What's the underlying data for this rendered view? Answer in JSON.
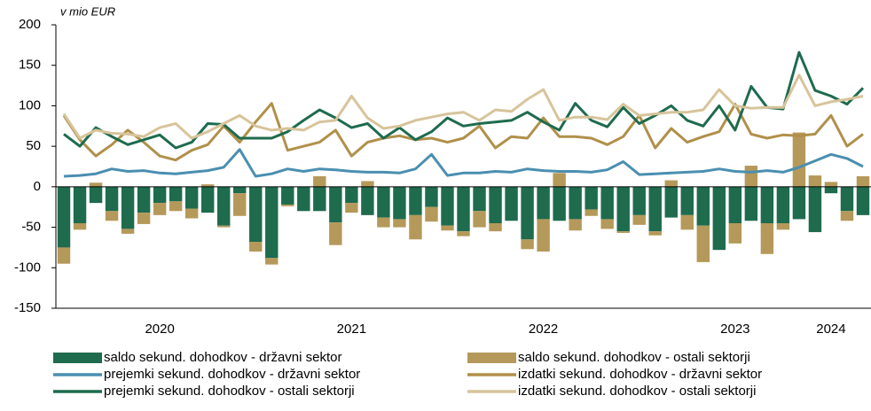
{
  "chart_data": {
    "type": "combo",
    "unit_label": "v mio EUR",
    "categories": [
      null,
      null,
      null,
      null,
      null,
      null,
      "2020",
      null,
      null,
      null,
      null,
      null,
      null,
      null,
      null,
      null,
      null,
      null,
      "2021",
      null,
      null,
      null,
      null,
      null,
      null,
      null,
      null,
      null,
      null,
      null,
      "2022",
      null,
      null,
      null,
      null,
      null,
      null,
      null,
      null,
      null,
      null,
      null,
      "2023",
      null,
      null,
      null,
      null,
      null,
      "2024",
      null,
      null
    ],
    "ylim": [
      -150,
      200
    ],
    "yticks": [
      -150,
      -100,
      -50,
      0,
      50,
      100,
      150,
      200
    ],
    "series": [
      {
        "name": "saldo sekund. dohodkov - državni sektor",
        "type": "bar",
        "color": "#1e6b4e",
        "values": [
          -75,
          -45,
          -20,
          -30,
          -52,
          -32,
          -20,
          -18,
          -27,
          -32,
          -48,
          -8,
          -68,
          -88,
          -22,
          -30,
          -30,
          -44,
          -20,
          -35,
          -38,
          -40,
          -35,
          -25,
          -48,
          -55,
          -30,
          -45,
          -42,
          -65,
          -40,
          -42,
          -40,
          -28,
          -40,
          -55,
          -35,
          -55,
          -38,
          -35,
          -48,
          -78,
          -45,
          -42,
          -45,
          -45,
          -40,
          -56,
          -8,
          -30,
          -35
        ]
      },
      {
        "name": "saldo sekund. dohodkov - ostali sektorji",
        "type": "bar",
        "color": "#b5995a",
        "values": [
          -20,
          -8,
          5,
          -12,
          -6,
          -14,
          -15,
          -12,
          -12,
          3,
          -2,
          -28,
          -12,
          -8,
          -2,
          0,
          13,
          -28,
          -12,
          7,
          -12,
          -10,
          -30,
          -18,
          -6,
          -6,
          -20,
          -10,
          0,
          -12,
          -40,
          17,
          -14,
          -8,
          -12,
          -2,
          -12,
          -5,
          8,
          -18,
          -45,
          0,
          -25,
          26,
          -38,
          -8,
          67,
          14,
          6,
          -12,
          13
        ]
      },
      {
        "name": "prejemki sekund. dohodkov - državni sektor",
        "type": "line",
        "color": "#4a8fb0",
        "values": [
          13,
          14,
          16,
          22,
          19,
          20,
          17,
          16,
          18,
          20,
          24,
          46,
          13,
          16,
          22,
          19,
          22,
          21,
          19,
          18,
          18,
          17,
          22,
          40,
          14,
          17,
          17,
          19,
          18,
          22,
          20,
          19,
          19,
          18,
          21,
          31,
          15,
          16,
          17,
          18,
          19,
          22,
          19,
          18,
          20,
          18,
          24,
          32,
          40,
          35,
          25
        ]
      },
      {
        "name": "izdatki sekund. dohodkov - državni sektor",
        "type": "line",
        "color": "#b0904a",
        "values": [
          88,
          58,
          38,
          52,
          70,
          55,
          38,
          33,
          45,
          52,
          75,
          55,
          80,
          103,
          45,
          50,
          55,
          70,
          38,
          55,
          60,
          63,
          58,
          60,
          55,
          60,
          75,
          48,
          62,
          60,
          85,
          62,
          62,
          60,
          52,
          62,
          88,
          48,
          72,
          55,
          62,
          68,
          102,
          65,
          60,
          64,
          63,
          65,
          88,
          50,
          65
        ]
      },
      {
        "name": "prejemki sekund. dohodkov - ostali sektorji",
        "type": "line",
        "color": "#1e6b4e",
        "values": [
          65,
          50,
          73,
          62,
          52,
          58,
          64,
          48,
          55,
          78,
          77,
          60,
          60,
          60,
          68,
          82,
          95,
          85,
          73,
          78,
          60,
          73,
          58,
          68,
          85,
          75,
          78,
          80,
          82,
          92,
          80,
          70,
          103,
          82,
          74,
          98,
          78,
          88,
          100,
          82,
          75,
          100,
          70,
          124,
          98,
          96,
          166,
          119,
          112,
          102,
          122
        ]
      },
      {
        "name": "izdatki sekund. dohodkov - ostali sektorji",
        "type": "line",
        "color": "#d7c49b",
        "values": [
          90,
          60,
          70,
          66,
          65,
          62,
          73,
          78,
          60,
          68,
          78,
          88,
          75,
          70,
          72,
          70,
          80,
          82,
          112,
          85,
          72,
          75,
          82,
          86,
          90,
          92,
          82,
          95,
          93,
          108,
          120,
          82,
          86,
          86,
          83,
          102,
          88,
          90,
          92,
          92,
          95,
          120,
          100,
          97,
          98,
          98,
          138,
          100,
          105,
          108,
          112
        ]
      }
    ]
  }
}
